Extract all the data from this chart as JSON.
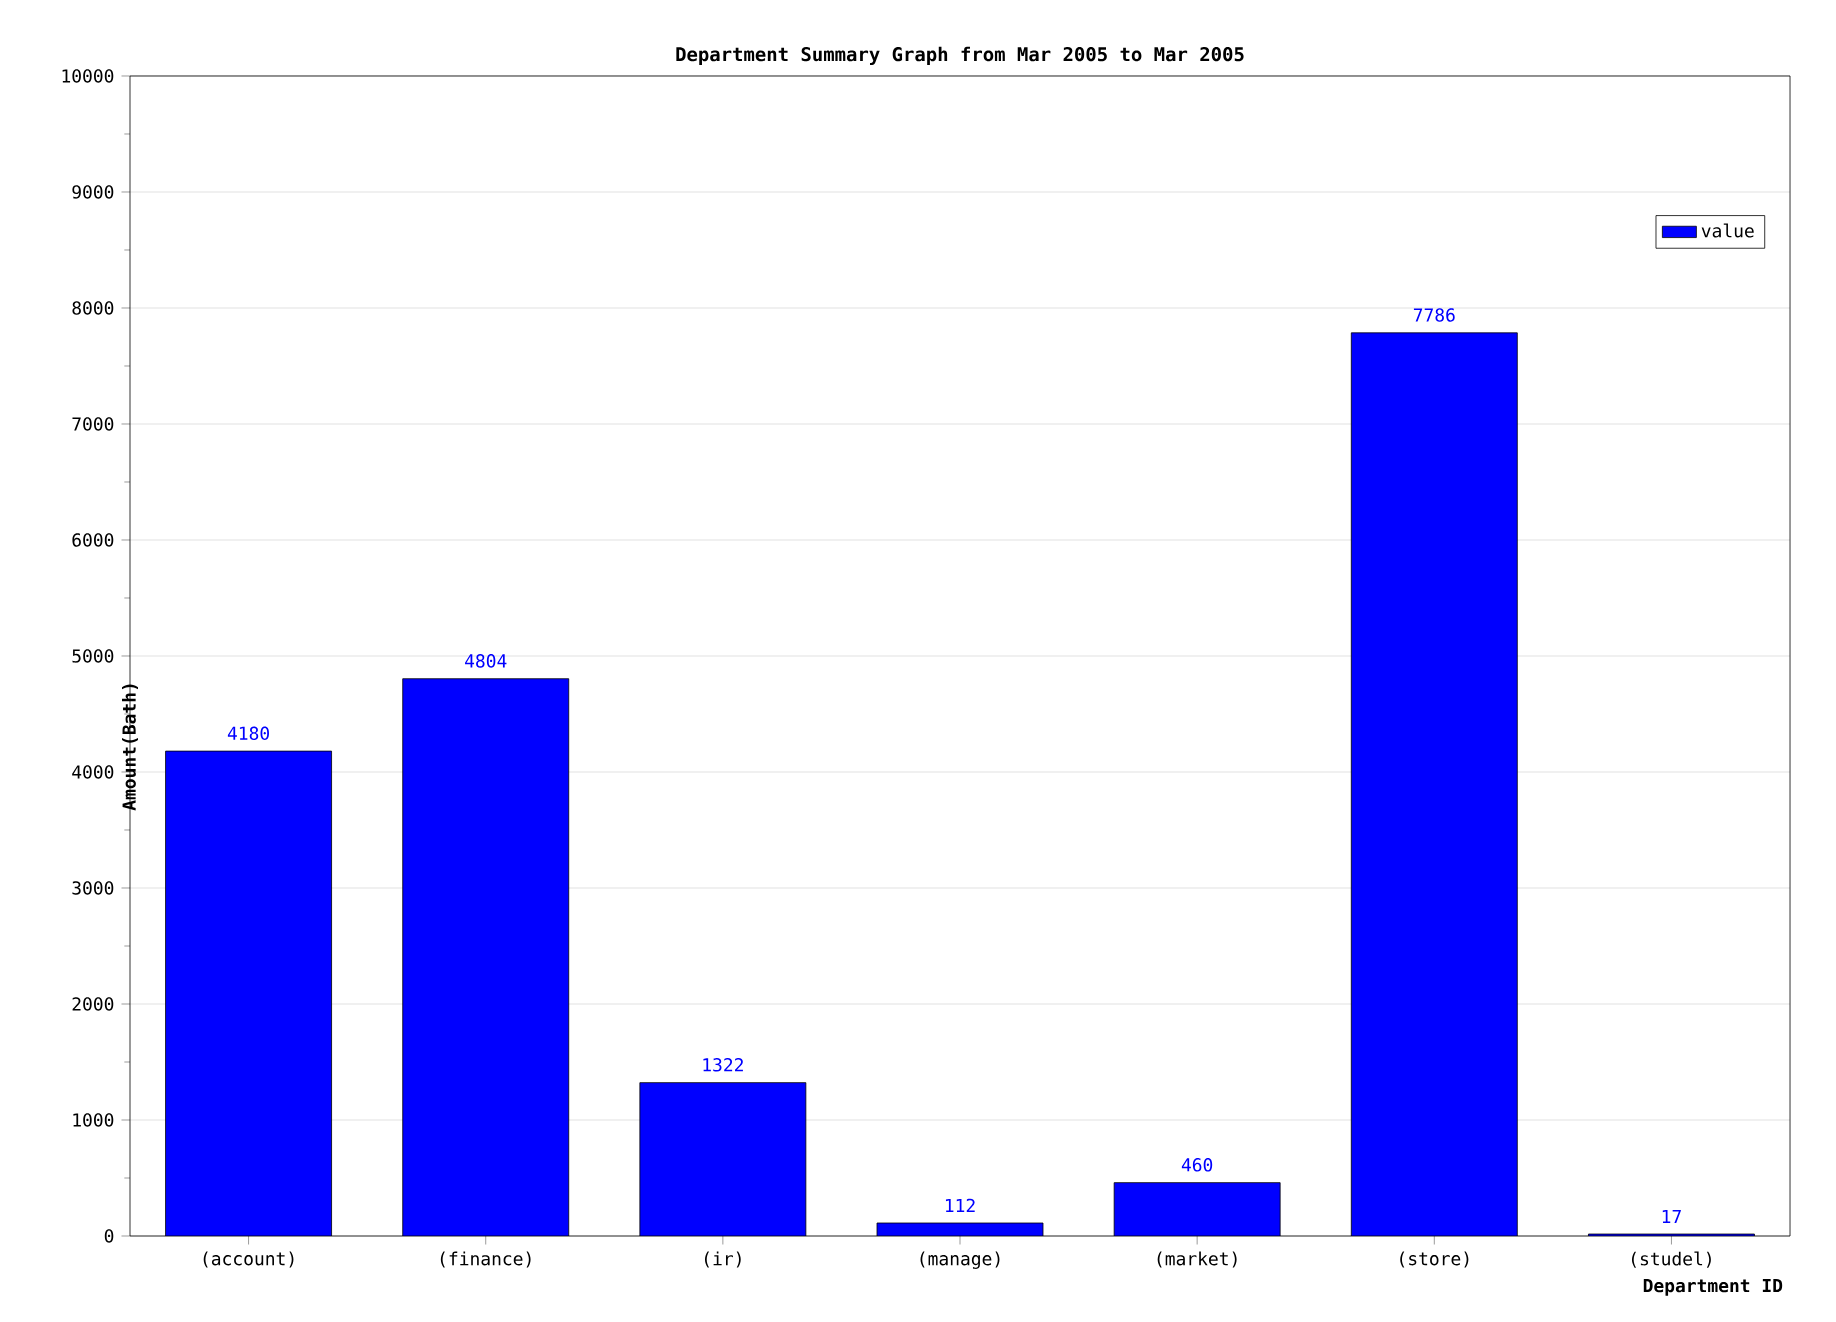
{
  "chart_data": {
    "type": "bar",
    "title": "Department Summary Graph from Mar 2005 to Mar 2005",
    "xlabel": "Department  ID",
    "ylabel": "Amount(Bath)",
    "categories": [
      "(account)",
      "(finance)",
      "(ir)",
      "(manage)",
      "(market)",
      "(store)",
      "(studel)"
    ],
    "series": [
      {
        "name": "value",
        "color": "#0000ff",
        "values": [
          4180,
          4804,
          1322,
          112,
          460,
          7786,
          17
        ]
      }
    ],
    "ylim": [
      0,
      10000
    ],
    "yticks": [
      0,
      1000,
      2000,
      3000,
      4000,
      5000,
      6000,
      7000,
      8000,
      9000,
      10000
    ],
    "grid": "y",
    "legend": "top right",
    "data_labels": true
  }
}
